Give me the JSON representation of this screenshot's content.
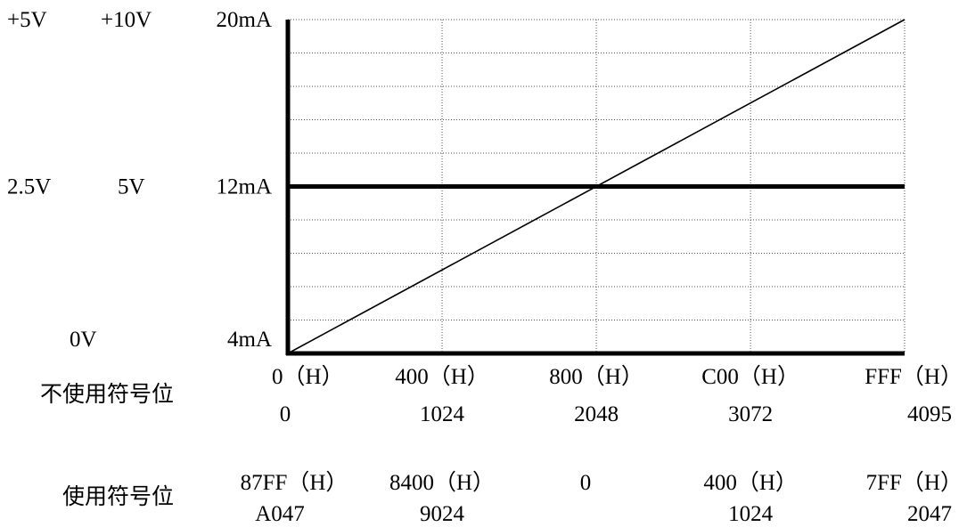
{
  "chart_data": {
    "type": "line",
    "title": "",
    "xlabel": "",
    "ylabel": "",
    "x_axis_rows": [
      {
        "name": "不使用符号位",
        "label": "不使用符号位",
        "hex": [
          "0（H）",
          "400（H）",
          "800（H）",
          "C00（H）",
          "FFF（H）"
        ],
        "decimal": [
          "0",
          "1024",
          "2048",
          "3072",
          "4095"
        ]
      },
      {
        "name": "使用符号位",
        "label": "使用符号位",
        "hex": [
          "87FF（H）",
          "8400（H）",
          "0",
          "400（H）",
          "7FF（H）"
        ],
        "decimal": [
          "A047",
          "9024",
          "",
          "1024",
          "2047"
        ]
      }
    ],
    "x_ticks": [
      0,
      1024,
      2048,
      3072,
      4095
    ],
    "xlim": [
      0,
      4095
    ],
    "y_axis_columns": [
      {
        "labels": [
          "+5V",
          "2.5V",
          "0V"
        ]
      },
      {
        "labels": [
          "+10V",
          "5V",
          ""
        ]
      },
      {
        "labels": [
          "20mA",
          "12mA",
          "4mA"
        ]
      }
    ],
    "y_ticks": [
      4,
      12,
      20
    ],
    "ylim": [
      4,
      20
    ],
    "y_unit": "mA",
    "y_minor_step": 1.6,
    "grid": true,
    "vertical_gridlines": [
      1024,
      2048,
      3072
    ],
    "midline": 12,
    "series": [
      {
        "x": [
          0,
          4095
        ],
        "y": [
          4,
          20
        ]
      }
    ]
  },
  "colors": {
    "line": "#000000",
    "grid": "#555555",
    "axis": "#000000",
    "background": "#ffffff"
  }
}
